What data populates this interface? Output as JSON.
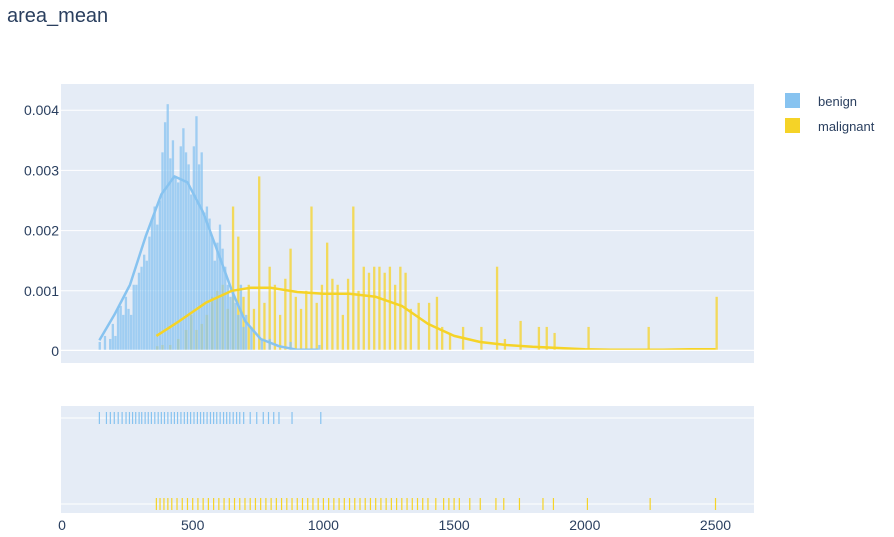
{
  "chart_data": {
    "type": "histogram",
    "title": "area_mean",
    "xlabel": "",
    "ylabel": "",
    "xlim": [
      0,
      2650
    ],
    "ylim": [
      0,
      0.0042
    ],
    "x_ticks": [
      0,
      500,
      1000,
      1500,
      2000,
      2500
    ],
    "y_ticks": [
      0,
      0.001,
      0.002,
      0.003,
      0.004
    ],
    "y_tick_labels": [
      "0",
      "0.001",
      "0.002",
      "0.003",
      "0.004"
    ],
    "x_tick_labels": [
      "0",
      "500",
      "1000",
      "1500",
      "2000",
      "2500"
    ],
    "bin_width": 10,
    "histnorm": "probability density",
    "grid": true,
    "legend_position": "top-right, outside plot",
    "marginal": "rug",
    "series": [
      {
        "name": "benign",
        "color": "#87c3f0",
        "hist_bins": [
          [
            140,
            0.00015
          ],
          [
            160,
            0.00025
          ],
          [
            180,
            0.0002
          ],
          [
            190,
            0.00045
          ],
          [
            200,
            0.00025
          ],
          [
            210,
            0.0007
          ],
          [
            220,
            0.00075
          ],
          [
            230,
            0.0006
          ],
          [
            240,
            0.0009
          ],
          [
            250,
            0.0007
          ],
          [
            260,
            0.0006
          ],
          [
            270,
            0.0011
          ],
          [
            280,
            0.0011
          ],
          [
            290,
            0.0013
          ],
          [
            300,
            0.0014
          ],
          [
            310,
            0.0016
          ],
          [
            320,
            0.0015
          ],
          [
            330,
            0.0019
          ],
          [
            340,
            0.0022
          ],
          [
            350,
            0.0024
          ],
          [
            360,
            0.0021
          ],
          [
            370,
            0.0025
          ],
          [
            380,
            0.0033
          ],
          [
            390,
            0.0038
          ],
          [
            400,
            0.0041
          ],
          [
            410,
            0.0032
          ],
          [
            420,
            0.0035
          ],
          [
            430,
            0.0029
          ],
          [
            440,
            0.0028
          ],
          [
            450,
            0.0034
          ],
          [
            460,
            0.0037
          ],
          [
            470,
            0.0033
          ],
          [
            480,
            0.0031
          ],
          [
            490,
            0.0026
          ],
          [
            500,
            0.0034
          ],
          [
            510,
            0.0039
          ],
          [
            520,
            0.0031
          ],
          [
            530,
            0.0033
          ],
          [
            540,
            0.0023
          ],
          [
            550,
            0.0024
          ],
          [
            560,
            0.0022
          ],
          [
            570,
            0.0019
          ],
          [
            580,
            0.0015
          ],
          [
            590,
            0.0018
          ],
          [
            600,
            0.0021
          ],
          [
            610,
            0.0017
          ],
          [
            620,
            0.0014
          ],
          [
            630,
            0.0011
          ],
          [
            640,
            0.0009
          ],
          [
            650,
            0.001
          ],
          [
            660,
            0.0008
          ],
          [
            670,
            0.0006
          ],
          [
            680,
            0.0011
          ],
          [
            690,
            0.0004
          ],
          [
            700,
            0.0006
          ],
          [
            720,
            0.0004
          ],
          [
            760,
            0.0002
          ],
          [
            790,
            0.0002
          ],
          [
            870,
            0.00015
          ],
          [
            980,
            0.0001
          ]
        ],
        "kde": [
          [
            143,
            0.00018
          ],
          [
            200,
            0.0006
          ],
          [
            260,
            0.0011
          ],
          [
            320,
            0.0019
          ],
          [
            380,
            0.0026
          ],
          [
            430,
            0.0029
          ],
          [
            480,
            0.0028
          ],
          [
            540,
            0.0023
          ],
          [
            600,
            0.0016
          ],
          [
            650,
            0.001
          ],
          [
            700,
            0.0005
          ],
          [
            760,
            0.0002
          ],
          [
            830,
            8e-05
          ],
          [
            900,
            2e-05
          ],
          [
            981,
            2e-05
          ]
        ],
        "rug": [
          143,
          170,
          185,
          200,
          215,
          230,
          245,
          258,
          270,
          282,
          295,
          305,
          318,
          330,
          342,
          355,
          368,
          380,
          392,
          405,
          418,
          430,
          442,
          455,
          468,
          480,
          492,
          505,
          518,
          530,
          542,
          555,
          568,
          580,
          592,
          605,
          618,
          630,
          642,
          655,
          668,
          680,
          695,
          720,
          745,
          770,
          790,
          810,
          830,
          880,
          990
        ]
      },
      {
        "name": "malignant",
        "color": "#f5d327",
        "hist_bins": [
          [
            360,
            8e-05
          ],
          [
            380,
            0.0001
          ],
          [
            410,
            0.0001
          ],
          [
            440,
            0.0002
          ],
          [
            470,
            0.00035
          ],
          [
            490,
            0.0006
          ],
          [
            510,
            0.00035
          ],
          [
            530,
            0.00045
          ],
          [
            550,
            0.0006
          ],
          [
            570,
            0.0009
          ],
          [
            590,
            0.001
          ],
          [
            610,
            0.0011
          ],
          [
            630,
            0.0007
          ],
          [
            650,
            0.0024
          ],
          [
            670,
            0.0019
          ],
          [
            690,
            0.0009
          ],
          [
            710,
            0.0011
          ],
          [
            730,
            0.0007
          ],
          [
            750,
            0.0029
          ],
          [
            770,
            0.0008
          ],
          [
            790,
            0.0014
          ],
          [
            810,
            0.0011
          ],
          [
            830,
            0.0006
          ],
          [
            850,
            0.0012
          ],
          [
            870,
            0.0017
          ],
          [
            890,
            0.0009
          ],
          [
            910,
            0.0007
          ],
          [
            930,
            0.001
          ],
          [
            950,
            0.0024
          ],
          [
            970,
            0.0008
          ],
          [
            990,
            0.0011
          ],
          [
            1010,
            0.0018
          ],
          [
            1030,
            0.0012
          ],
          [
            1050,
            0.0011
          ],
          [
            1070,
            0.0006
          ],
          [
            1090,
            0.0012
          ],
          [
            1110,
            0.0024
          ],
          [
            1130,
            0.001
          ],
          [
            1150,
            0.0014
          ],
          [
            1170,
            0.0013
          ],
          [
            1190,
            0.0014
          ],
          [
            1210,
            0.0014
          ],
          [
            1230,
            0.0013
          ],
          [
            1250,
            0.0014
          ],
          [
            1270,
            0.0011
          ],
          [
            1290,
            0.0014
          ],
          [
            1310,
            0.0013
          ],
          [
            1330,
            0.0007
          ],
          [
            1360,
            0.0008
          ],
          [
            1400,
            0.0008
          ],
          [
            1430,
            0.0009
          ],
          [
            1450,
            0.0004
          ],
          [
            1480,
            0.0003
          ],
          [
            1530,
            0.0004
          ],
          [
            1600,
            0.0004
          ],
          [
            1660,
            0.0014
          ],
          [
            1690,
            0.0002
          ],
          [
            1750,
            0.0005
          ],
          [
            1820,
            0.0004
          ],
          [
            1850,
            0.0004
          ],
          [
            1880,
            0.0003
          ],
          [
            2010,
            0.0004
          ],
          [
            2240,
            0.0004
          ],
          [
            2500,
            0.0009
          ]
        ],
        "kde": [
          [
            361,
            0.00025
          ],
          [
            450,
            0.0005
          ],
          [
            550,
            0.0008
          ],
          [
            650,
            0.001
          ],
          [
            720,
            0.00105
          ],
          [
            800,
            0.00105
          ],
          [
            900,
            0.00098
          ],
          [
            1000,
            0.00095
          ],
          [
            1100,
            0.00095
          ],
          [
            1200,
            0.0009
          ],
          [
            1300,
            0.00075
          ],
          [
            1400,
            0.00045
          ],
          [
            1500,
            0.00025
          ],
          [
            1600,
            0.00015
          ],
          [
            1700,
            0.0001
          ],
          [
            1800,
            7e-05
          ],
          [
            1900,
            5e-05
          ],
          [
            2000,
            3e-05
          ],
          [
            2100,
            2e-05
          ],
          [
            2200,
            2e-05
          ],
          [
            2300,
            2e-05
          ],
          [
            2400,
            3e-05
          ],
          [
            2500,
            3e-05
          ]
        ],
        "rug": [
          361,
          375,
          390,
          405,
          420,
          440,
          460,
          480,
          500,
          520,
          540,
          560,
          580,
          600,
          620,
          640,
          660,
          680,
          700,
          720,
          740,
          760,
          780,
          800,
          820,
          840,
          860,
          880,
          900,
          920,
          940,
          960,
          980,
          1000,
          1020,
          1040,
          1060,
          1080,
          1100,
          1120,
          1140,
          1160,
          1180,
          1200,
          1220,
          1240,
          1260,
          1280,
          1300,
          1320,
          1340,
          1360,
          1380,
          1400,
          1430,
          1460,
          1480,
          1500,
          1520,
          1560,
          1600,
          1660,
          1690,
          1750,
          1840,
          1880,
          2010,
          2250,
          2500
        ]
      }
    ]
  }
}
